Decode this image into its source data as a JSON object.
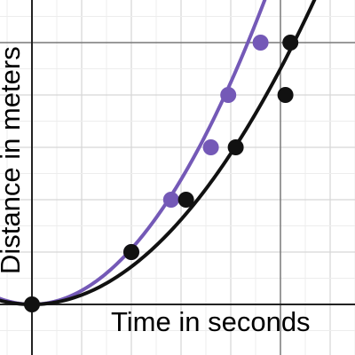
{
  "chart_data": {
    "type": "scatter",
    "xlabel": "Time in seconds",
    "ylabel": "Distance in meters",
    "grid": true,
    "x_range": [
      -0.6,
      6.4
    ],
    "y_range": [
      -1.0,
      6.0
    ],
    "series": [
      {
        "color": "#7459b7",
        "points": [
          [
            2.0,
            1.0
          ],
          [
            2.8,
            2.0
          ],
          [
            3.6,
            3.0
          ],
          [
            3.95,
            4.0
          ],
          [
            4.6,
            5.0
          ]
        ],
        "curve": "y = 0.265x^2"
      },
      {
        "color": "#111111",
        "points": [
          [
            0.0,
            0.0
          ],
          [
            2.0,
            1.0
          ],
          [
            3.1,
            2.0
          ],
          [
            4.1,
            3.0
          ],
          [
            5.1,
            4.0
          ],
          [
            5.2,
            5.0
          ]
        ],
        "curve": "y = 0.18x^2"
      }
    ]
  }
}
